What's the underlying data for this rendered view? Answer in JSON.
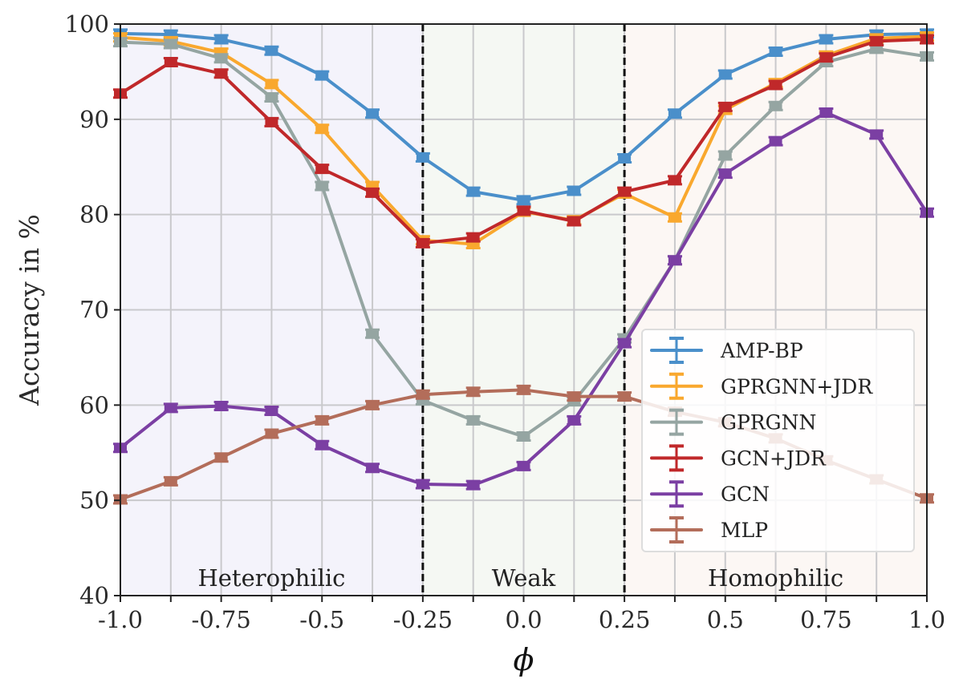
{
  "chart_data": {
    "type": "line",
    "title": "",
    "xlabel": "ϕ",
    "ylabel": "Accuracy in %",
    "xlim": [
      -1.0,
      1.0
    ],
    "ylim": [
      40,
      100
    ],
    "grid": true,
    "legend_position": "lower-right",
    "x": [
      -1.0,
      -0.875,
      -0.75,
      -0.625,
      -0.5,
      -0.375,
      -0.25,
      -0.125,
      0.0,
      0.125,
      0.25,
      0.375,
      0.5,
      0.625,
      0.75,
      0.875,
      1.0
    ],
    "x_ticks": [
      -1.0,
      -0.75,
      -0.5,
      -0.25,
      0.0,
      0.25,
      0.5,
      0.75,
      1.0
    ],
    "x_tick_labels": [
      "-1.0",
      "-0.75",
      "-0.5",
      "-0.25",
      "0.0",
      "0.25",
      "0.5",
      "0.75",
      "1.0"
    ],
    "y_ticks": [
      40,
      50,
      60,
      70,
      80,
      90,
      100
    ],
    "y_tick_labels": [
      "40",
      "50",
      "60",
      "70",
      "80",
      "90",
      "100"
    ],
    "regions": [
      {
        "label": "Heterophilic",
        "from": -1.0,
        "to": -0.25,
        "color": "#f4f3fb"
      },
      {
        "label": "Weak",
        "from": -0.25,
        "to": 0.25,
        "color": "#f5f8f3"
      },
      {
        "label": "Homophilic",
        "from": 0.25,
        "to": 1.0,
        "color": "#fcf7f4"
      }
    ],
    "dividers": [
      -0.25,
      0.25
    ],
    "series": [
      {
        "name": "AMP-BP",
        "color": "#4a8fca",
        "values": [
          99.0,
          98.9,
          98.4,
          97.2,
          94.6,
          90.6,
          86.0,
          82.4,
          81.5,
          82.5,
          85.9,
          90.6,
          94.7,
          97.1,
          98.4,
          98.9,
          99.0
        ]
      },
      {
        "name": "GPRGNN+JDR",
        "color": "#f9a82e",
        "values": [
          98.6,
          98.2,
          97.0,
          93.7,
          89.0,
          83.0,
          77.3,
          76.9,
          80.3,
          79.4,
          82.2,
          79.7,
          91.0,
          93.8,
          96.7,
          98.5,
          98.7
        ]
      },
      {
        "name": "GPRGNN",
        "color": "#95a5a2",
        "values": [
          98.1,
          97.9,
          96.4,
          92.3,
          83.0,
          67.5,
          60.5,
          58.4,
          56.7,
          60.4,
          67.0,
          75.2,
          86.2,
          91.4,
          96.0,
          97.4,
          96.6
        ]
      },
      {
        "name": "GCN+JDR",
        "color": "#c0282a",
        "values": [
          92.7,
          96.0,
          94.8,
          89.7,
          84.8,
          82.3,
          77.0,
          77.6,
          80.4,
          79.3,
          82.4,
          83.6,
          91.3,
          93.6,
          96.5,
          98.2,
          98.4
        ]
      },
      {
        "name": "GCN",
        "color": "#7b3fa3",
        "values": [
          55.5,
          59.7,
          59.9,
          59.4,
          55.8,
          53.4,
          51.7,
          51.6,
          53.6,
          58.4,
          66.5,
          75.2,
          84.3,
          87.7,
          90.7,
          88.4,
          80.2
        ]
      },
      {
        "name": "MLP",
        "color": "#b36d5a",
        "values": [
          50.1,
          52.0,
          54.5,
          57.0,
          58.4,
          60.0,
          61.1,
          61.4,
          61.6,
          60.9,
          60.9,
          59.3,
          58.2,
          56.5,
          54.2,
          52.2,
          50.2
        ]
      }
    ]
  }
}
